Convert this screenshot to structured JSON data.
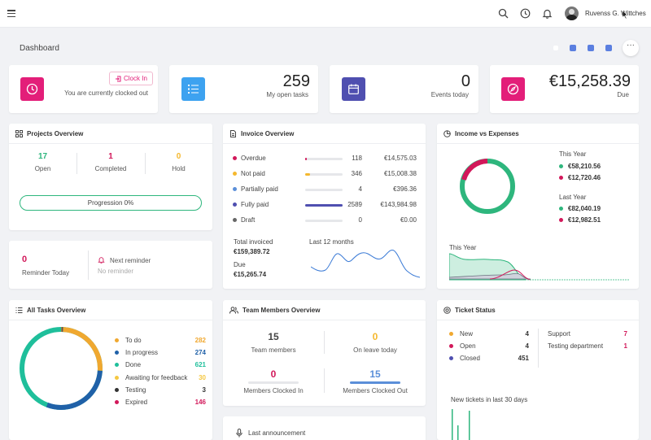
{
  "header": {
    "user_name": "Ruvenss G. Wittches"
  },
  "page": {
    "title": "Dashboard"
  },
  "colors": {
    "pink": "#e31e79",
    "blue": "#3da2f0",
    "indigo": "#4f4fb0",
    "green": "#2eb67d",
    "red": "#d2185a",
    "yellow": "#f5b82e",
    "darkblue": "#2061a8",
    "teal": "#1fbf9b",
    "darkgray": "#555"
  },
  "stats": {
    "clock": {
      "button": "Clock In",
      "text": "You are currently clocked out"
    },
    "tasks": {
      "value": "259",
      "label": "My open tasks"
    },
    "events": {
      "value": "0",
      "label": "Events today"
    },
    "due": {
      "value": "€15,258.39",
      "label": "Due"
    }
  },
  "projects": {
    "title": "Projects Overview",
    "open": {
      "value": "17",
      "label": "Open"
    },
    "completed": {
      "value": "1",
      "label": "Completed"
    },
    "hold": {
      "value": "0",
      "label": "Hold"
    },
    "progress_label": "Progression 0%",
    "progress": 0
  },
  "reminder": {
    "count": "0",
    "label": "Reminder Today",
    "next_label": "Next reminder",
    "next_value": "No reminder"
  },
  "invoice": {
    "title": "Invoice Overview",
    "rows": [
      {
        "label": "Overdue",
        "count": "118",
        "amount": "€14,575.03",
        "fill": 0.04,
        "color": "#d2185a"
      },
      {
        "label": "Not paid",
        "count": "346",
        "amount": "€15,008.38",
        "fill": 0.13,
        "color": "#f5b82e"
      },
      {
        "label": "Partially paid",
        "count": "4",
        "amount": "€396.36",
        "fill": 0.0,
        "color": "#5b8fd9"
      },
      {
        "label": "Fully paid",
        "count": "2589",
        "amount": "€143,984.98",
        "fill": 1.0,
        "color": "#4f4fb0"
      },
      {
        "label": "Draft",
        "count": "0",
        "amount": "€0.00",
        "fill": 0.0,
        "color": "#666"
      }
    ],
    "total_label": "Total invoiced",
    "total_value": "€159,389.72",
    "due_label": "Due",
    "due_value": "€15,265.74",
    "chart_label": "Last 12 months"
  },
  "income": {
    "title": "Income vs Expenses",
    "this_year_label": "This Year",
    "this_income": "€58,210.56",
    "this_expense": "€12,720.46",
    "last_year_label": "Last Year",
    "last_income": "€82,040.19",
    "last_expense": "€12,982.51",
    "area_label": "This Year"
  },
  "tasks": {
    "title": "All Tasks Overview",
    "items": [
      {
        "label": "To do",
        "value": "282",
        "color": "#f0a830"
      },
      {
        "label": "In progress",
        "value": "274",
        "color": "#2061a8"
      },
      {
        "label": "Done",
        "value": "621",
        "color": "#1fbf9b"
      },
      {
        "label": "Awaiting for feedback",
        "value": "30",
        "color": "#f5c842"
      },
      {
        "label": "Testing",
        "value": "3",
        "color": "#333"
      },
      {
        "label": "Expired",
        "value": "146",
        "color": "#d2185a"
      }
    ]
  },
  "team": {
    "title": "Team Members Overview",
    "members": {
      "value": "15",
      "label": "Team members"
    },
    "leave": {
      "value": "0",
      "label": "On leave today"
    },
    "clocked_in": {
      "value": "0",
      "label": "Members Clocked In"
    },
    "clocked_out": {
      "value": "15",
      "label": "Members Clocked Out"
    }
  },
  "announcement": {
    "label": "Last announcement"
  },
  "tickets": {
    "title": "Ticket Status",
    "statuses": [
      {
        "label": "New",
        "value": "4",
        "color": "#f0a830"
      },
      {
        "label": "Open",
        "value": "4",
        "color": "#d2185a"
      },
      {
        "label": "Closed",
        "value": "451",
        "color": "#4f4fb0"
      }
    ],
    "depts": [
      {
        "label": "Support",
        "value": "7"
      },
      {
        "label": "Testing department",
        "value": "1"
      }
    ],
    "chart_label": "New tickets in last 30 days"
  }
}
